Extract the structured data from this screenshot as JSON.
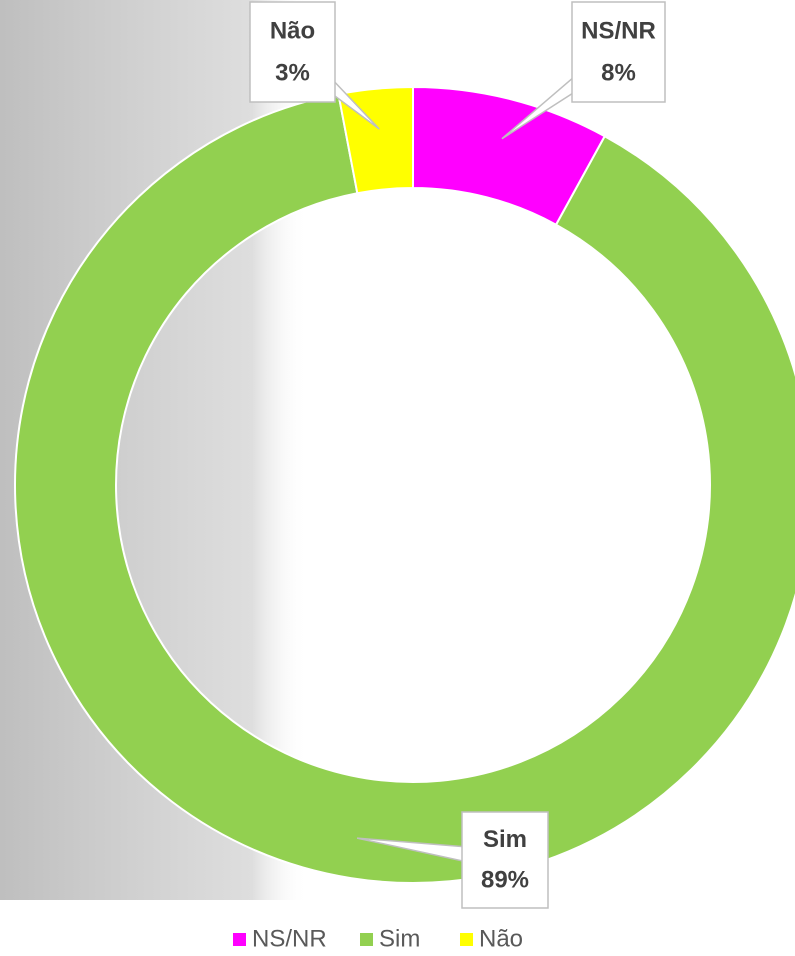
{
  "chart_data": {
    "type": "donut",
    "categories": [
      "NS/NR",
      "Sim",
      "Não"
    ],
    "values": [
      8,
      89,
      3
    ],
    "value_labels": [
      "8%",
      "89%",
      "3%"
    ],
    "colors": [
      "#ff00ff",
      "#92d050",
      "#ffff00"
    ],
    "legend": "bottom"
  }
}
